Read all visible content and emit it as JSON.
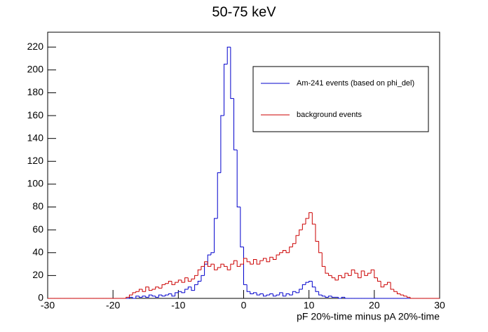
{
  "chart_data": {
    "type": "histogram",
    "title": "50-75 keV",
    "x_label": "pF 20%-time minus pA 20%-time",
    "bins": [
      -30,
      -29.5,
      -29,
      -28.5,
      -28,
      -27.5,
      -27,
      -26.5,
      -26,
      -25.5,
      -25,
      -24.5,
      -24,
      -23.5,
      -23,
      -22.5,
      -22,
      -21.5,
      -21,
      -20.5,
      -20,
      -19.5,
      -19,
      -18.5,
      -18,
      -17.5,
      -17,
      -16.5,
      -16,
      -15.5,
      -15,
      -14.5,
      -14,
      -13.5,
      -13,
      -12.5,
      -12,
      -11.5,
      -11,
      -10.5,
      -10,
      -9.5,
      -9,
      -8.5,
      -8,
      -7.5,
      -7,
      -6.5,
      -6,
      -5.5,
      -5,
      -4.5,
      -4,
      -3.5,
      -3,
      -2.5,
      -2,
      -1.5,
      -1,
      -0.5,
      0,
      0.5,
      1,
      1.5,
      2,
      2.5,
      3,
      3.5,
      4,
      4.5,
      5,
      5.5,
      6,
      6.5,
      7,
      7.5,
      8,
      8.5,
      9,
      9.5,
      10,
      10.5,
      11,
      11.5,
      12,
      12.5,
      13,
      13.5,
      14,
      14.5,
      15,
      15.5,
      16,
      16.5,
      17,
      17.5,
      18,
      18.5,
      19,
      19.5,
      20,
      20.5,
      21,
      21.5,
      22,
      22.5,
      23,
      23.5,
      24,
      24.5,
      25,
      25.5,
      26,
      26.5,
      27,
      27.5,
      28,
      28.5,
      29,
      29.5,
      30
    ],
    "series": [
      {
        "name": "Am-241 events (based on phi_del)",
        "color": "#0000cc",
        "values": [
          0,
          0,
          0,
          0,
          0,
          0,
          0,
          0,
          0,
          0,
          0,
          0,
          0,
          0,
          0,
          0,
          0,
          0,
          0,
          0,
          0,
          0,
          0,
          0,
          0,
          1,
          0,
          2,
          1,
          2,
          1,
          3,
          2,
          1,
          3,
          2,
          3,
          4,
          2,
          5,
          6,
          5,
          8,
          10,
          7,
          12,
          15,
          20,
          30,
          38,
          40,
          70,
          110,
          160,
          205,
          220,
          175,
          130,
          80,
          45,
          12,
          6,
          4,
          5,
          3,
          4,
          2,
          3,
          4,
          2,
          3,
          5,
          2,
          4,
          3,
          6,
          5,
          8,
          12,
          14,
          15,
          10,
          6,
          3,
          2,
          1,
          2,
          1,
          1,
          0,
          1,
          0,
          0,
          0,
          0,
          0,
          0,
          0,
          0,
          0,
          0,
          0,
          0,
          0,
          0,
          0,
          0,
          0,
          0,
          0,
          0,
          0,
          0,
          0,
          0,
          0,
          0,
          0,
          0,
          0
        ]
      },
      {
        "name": "background events",
        "color": "#cc0000",
        "values": [
          0,
          0,
          0,
          0,
          0,
          0,
          0,
          0,
          0,
          0,
          0,
          0,
          0,
          0,
          0,
          0,
          0,
          0,
          0,
          0,
          0,
          0,
          0,
          0,
          1,
          3,
          5,
          6,
          8,
          6,
          10,
          7,
          8,
          10,
          9,
          12,
          13,
          15,
          12,
          14,
          16,
          14,
          18,
          15,
          17,
          20,
          25,
          28,
          32,
          28,
          30,
          25,
          27,
          30,
          28,
          25,
          30,
          33,
          28,
          30,
          35,
          32,
          30,
          34,
          30,
          33,
          35,
          32,
          36,
          34,
          38,
          40,
          42,
          40,
          45,
          48,
          55,
          60,
          65,
          70,
          75,
          65,
          50,
          40,
          28,
          22,
          20,
          18,
          16,
          20,
          18,
          22,
          20,
          25,
          22,
          18,
          24,
          20,
          22,
          25,
          18,
          15,
          10,
          12,
          14,
          8,
          6,
          4,
          3,
          2,
          1,
          0,
          0,
          0,
          0,
          0,
          0,
          0,
          0,
          0
        ]
      }
    ],
    "xlim": [
      -30,
      30
    ],
    "xticks": [
      -30,
      -20,
      -10,
      0,
      10,
      20,
      30
    ],
    "ylim": [
      0,
      233
    ],
    "yticks": [
      0,
      20,
      40,
      60,
      80,
      100,
      120,
      140,
      160,
      180,
      200,
      220
    ]
  }
}
